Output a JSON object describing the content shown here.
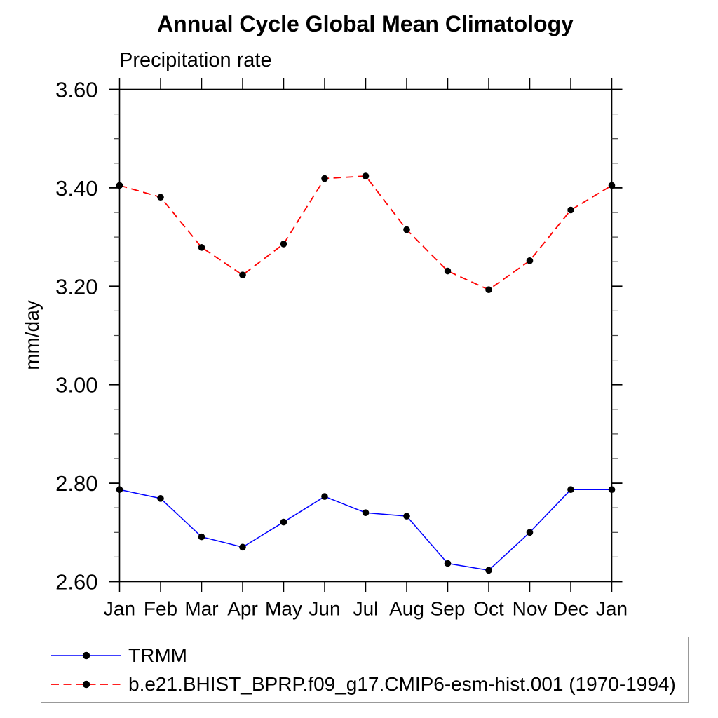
{
  "title": "Annual Cycle Global Mean Climatology",
  "subtitle": "Precipitation rate",
  "ylabel": "mm/day",
  "colors": {
    "trmm_line": "#0000ff",
    "model_line": "#ff0000",
    "marker": "#000000",
    "axis": "#000000",
    "minor_tick": "#444444",
    "legend_border": "#999999"
  },
  "chart_data": {
    "type": "line",
    "title": "Annual Cycle Global Mean Climatology",
    "subtitle": "Precipitation rate",
    "xlabel": "",
    "ylabel": "mm/day",
    "categories": [
      "Jan",
      "Feb",
      "Mar",
      "Apr",
      "May",
      "Jun",
      "Jul",
      "Aug",
      "Sep",
      "Oct",
      "Nov",
      "Dec",
      "Jan"
    ],
    "ylim": [
      2.6,
      3.6
    ],
    "ytick_labels": [
      "2.60",
      "2.80",
      "3.00",
      "3.20",
      "3.40",
      "3.60"
    ],
    "ytick_major_values": [
      2.6,
      2.8,
      3.0,
      3.2,
      3.4,
      3.6
    ],
    "ytick_minor_interval": 0.05,
    "grid": false,
    "legend_position": "bottom-left-box",
    "series": [
      {
        "name": "TRMM",
        "color": "#0000ff",
        "line_style": "solid",
        "marker": "filled-circle",
        "marker_color": "#000000",
        "values": [
          2.787,
          2.769,
          2.691,
          2.67,
          2.721,
          2.773,
          2.74,
          2.733,
          2.637,
          2.623,
          2.7,
          2.787,
          2.787
        ]
      },
      {
        "name": "b.e21.BHIST_BPRP.f09_g17.CMIP6-esm-hist.001 (1970-1994)",
        "color": "#ff0000",
        "line_style": "dashed",
        "marker": "filled-circle",
        "marker_color": "#000000",
        "values": [
          3.405,
          3.381,
          3.279,
          3.223,
          3.286,
          3.419,
          3.424,
          3.315,
          3.231,
          3.193,
          3.252,
          3.355,
          3.405
        ]
      }
    ]
  }
}
